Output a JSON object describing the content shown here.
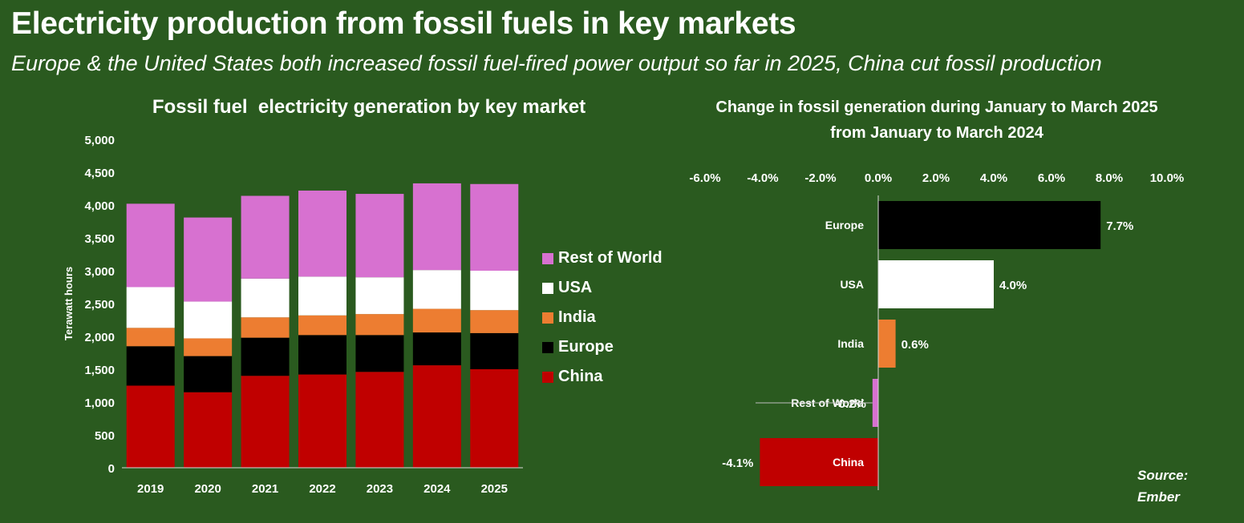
{
  "title": "Electricity production from fossil fuels in key markets",
  "subtitle": "Europe & the United States both increased fossil fuel-fired power output so far in 2025, China cut fossil production",
  "source": "Source:\nEmber",
  "colors": {
    "background": "#2a5a1f",
    "China": "#c00000",
    "Europe": "#000000",
    "India": "#ed7d31",
    "USA": "#ffffff",
    "Rest of World": "#d771d0"
  },
  "chart_data": [
    {
      "type": "bar",
      "stacked": true,
      "title": "Fossil fuel  electricity generation by key market",
      "ylabel": "Terawatt hours",
      "xlabel": "",
      "categories": [
        "2019",
        "2020",
        "2021",
        "2022",
        "2023",
        "2024",
        "2025"
      ],
      "ylim": [
        0,
        5000
      ],
      "yticks": [
        "0",
        "500",
        "1,000",
        "1,500",
        "2,000",
        "2,500",
        "3,000",
        "3,500",
        "4,000",
        "4,500",
        "5,000"
      ],
      "legend_position": "right",
      "series": [
        {
          "name": "China",
          "values": [
            1250,
            1150,
            1400,
            1420,
            1460,
            1560,
            1500
          ]
        },
        {
          "name": "Europe",
          "values": [
            600,
            550,
            580,
            600,
            560,
            500,
            550
          ]
        },
        {
          "name": "India",
          "values": [
            280,
            270,
            310,
            300,
            320,
            360,
            350
          ]
        },
        {
          "name": "USA",
          "values": [
            620,
            560,
            590,
            590,
            560,
            590,
            600
          ]
        },
        {
          "name": "Rest of World",
          "values": [
            1270,
            1280,
            1260,
            1310,
            1270,
            1320,
            1320
          ]
        }
      ],
      "legend_order": [
        "Rest of World",
        "USA",
        "India",
        "Europe",
        "China"
      ]
    },
    {
      "type": "bar",
      "orientation": "horizontal",
      "title": "Change in fossil generation during January to March 2025 from January to March 2024",
      "xlim": [
        -6.0,
        10.0
      ],
      "xticks": [
        "-6.0%",
        "-4.0%",
        "-2.0%",
        "0.0%",
        "2.0%",
        "4.0%",
        "6.0%",
        "8.0%",
        "10.0%"
      ],
      "categories": [
        "Europe",
        "USA",
        "India",
        "Rest of World",
        "China"
      ],
      "values": [
        7.7,
        4.0,
        0.6,
        -0.2,
        -4.1
      ],
      "labels": [
        "7.7%",
        "4.0%",
        "0.6%",
        "-0.2%",
        "-4.1%"
      ]
    }
  ]
}
